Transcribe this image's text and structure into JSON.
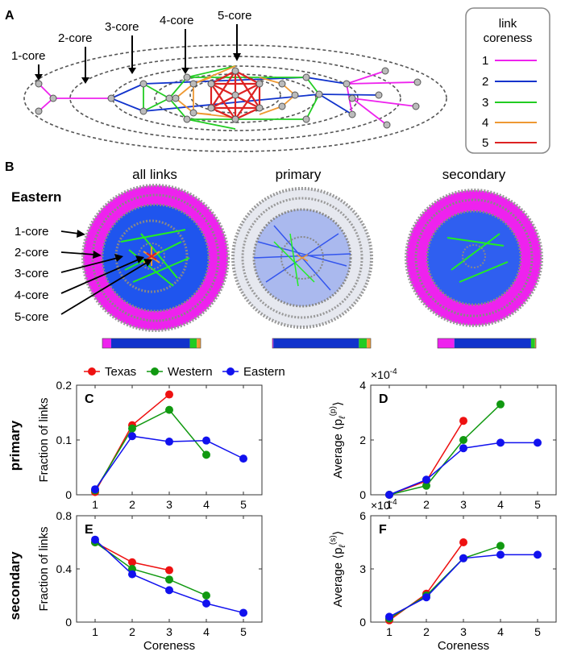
{
  "panels": {
    "A": {
      "label": "A",
      "core_labels": [
        "1-core",
        "2-core",
        "3-core",
        "4-core",
        "5-core"
      ],
      "legend": {
        "title_line1": "link",
        "title_line2": "coreness",
        "items": [
          {
            "label": "1",
            "color": "#ee22ee"
          },
          {
            "label": "2",
            "color": "#1133cc"
          },
          {
            "label": "3",
            "color": "#22cc22"
          },
          {
            "label": "4",
            "color": "#ee9933"
          },
          {
            "label": "5",
            "color": "#dd2222"
          }
        ]
      }
    },
    "B": {
      "label": "B",
      "row_title": "Eastern",
      "columns": [
        "all links",
        "primary",
        "secondary"
      ],
      "core_labels": [
        "1-core",
        "2-core",
        "3-core",
        "4-core",
        "5-core"
      ],
      "bars": [
        [
          0.09,
          0.8,
          0.07,
          0.04
        ],
        [
          0.01,
          0.87,
          0.08,
          0.04
        ],
        [
          0.17,
          0.78,
          0.04,
          0.01
        ]
      ]
    }
  },
  "legend": {
    "items": [
      {
        "label": "Texas",
        "color": "#ee1111"
      },
      {
        "label": "Western",
        "color": "#119911"
      },
      {
        "label": "Eastern",
        "color": "#1111ee"
      }
    ]
  },
  "row_labels": {
    "top": "primary",
    "bottom": "secondary"
  },
  "chart_data": [
    {
      "panel": "C",
      "type": "line",
      "title": "",
      "xlabel": "",
      "ylabel": "Fraction of links",
      "xlim": [
        0.5,
        5.5
      ],
      "ylim": [
        0,
        0.2
      ],
      "xticks": [
        1,
        2,
        3,
        4,
        5
      ],
      "yticks": [
        0,
        0.1,
        0.2
      ],
      "ytick_labels": [
        "0",
        "0.1",
        "0.2"
      ],
      "exponent": "",
      "series": [
        {
          "name": "Texas",
          "x": [
            1,
            2,
            3
          ],
          "values": [
            0.005,
            0.127,
            0.183
          ]
        },
        {
          "name": "Western",
          "x": [
            1,
            2,
            3,
            4
          ],
          "values": [
            0.008,
            0.121,
            0.155,
            0.073
          ]
        },
        {
          "name": "Eastern",
          "x": [
            1,
            2,
            3,
            4,
            5
          ],
          "values": [
            0.01,
            0.107,
            0.097,
            0.099,
            0.066
          ]
        }
      ]
    },
    {
      "panel": "D",
      "type": "line",
      "title": "",
      "xlabel": "",
      "ylabel": "Average ⟨p",
      "ylabel_sup": "(p)",
      "ylabel_sub": "ℓ",
      "ylabel_end": "⟩",
      "xlim": [
        0.5,
        5.5
      ],
      "ylim": [
        0,
        4
      ],
      "xticks": [
        1,
        2,
        3,
        4,
        5
      ],
      "yticks": [
        0,
        2,
        4
      ],
      "ytick_labels": [
        "0",
        "2",
        "4"
      ],
      "exponent": "×10",
      "exponent_power": "-4",
      "series": [
        {
          "name": "Texas",
          "x": [
            1,
            2,
            3
          ],
          "values": [
            0.0,
            0.5,
            2.7
          ]
        },
        {
          "name": "Western",
          "x": [
            1,
            2,
            3,
            4
          ],
          "values": [
            0.0,
            0.33,
            2.0,
            3.3
          ]
        },
        {
          "name": "Eastern",
          "x": [
            1,
            2,
            3,
            4,
            5
          ],
          "values": [
            0.0,
            0.55,
            1.7,
            1.9,
            1.9
          ]
        }
      ]
    },
    {
      "panel": "E",
      "type": "line",
      "title": "",
      "xlabel": "Coreness",
      "ylabel": "Fraction of links",
      "xlim": [
        0.5,
        5.5
      ],
      "ylim": [
        0,
        0.8
      ],
      "xticks": [
        1,
        2,
        3,
        4,
        5
      ],
      "yticks": [
        0,
        0.4,
        0.8
      ],
      "ytick_labels": [
        "0",
        "0.4",
        "0.8"
      ],
      "exponent": "",
      "series": [
        {
          "name": "Texas",
          "x": [
            1,
            2,
            3
          ],
          "values": [
            0.6,
            0.45,
            0.39
          ]
        },
        {
          "name": "Western",
          "x": [
            1,
            2,
            3,
            4
          ],
          "values": [
            0.6,
            0.4,
            0.32,
            0.2
          ]
        },
        {
          "name": "Eastern",
          "x": [
            1,
            2,
            3,
            4,
            5
          ],
          "values": [
            0.62,
            0.36,
            0.24,
            0.14,
            0.07
          ]
        }
      ]
    },
    {
      "panel": "F",
      "type": "line",
      "title": "",
      "xlabel": "Coreness",
      "ylabel": "Average ⟨p",
      "ylabel_sup": "(s)",
      "ylabel_sub": "ℓ",
      "ylabel_end": "⟩",
      "xlim": [
        0.5,
        5.5
      ],
      "ylim": [
        0,
        6
      ],
      "xticks": [
        1,
        2,
        3,
        4,
        5
      ],
      "yticks": [
        0,
        3,
        6
      ],
      "ytick_labels": [
        "0",
        "3",
        "6"
      ],
      "exponent": "×10",
      "exponent_power": "-4",
      "series": [
        {
          "name": "Texas",
          "x": [
            1,
            2,
            3
          ],
          "values": [
            0.1,
            1.6,
            4.5
          ]
        },
        {
          "name": "Western",
          "x": [
            1,
            2,
            3,
            4
          ],
          "values": [
            0.2,
            1.5,
            3.6,
            4.3
          ]
        },
        {
          "name": "Eastern",
          "x": [
            1,
            2,
            3,
            4,
            5
          ],
          "values": [
            0.3,
            1.4,
            3.6,
            3.8,
            3.8
          ]
        }
      ]
    }
  ]
}
